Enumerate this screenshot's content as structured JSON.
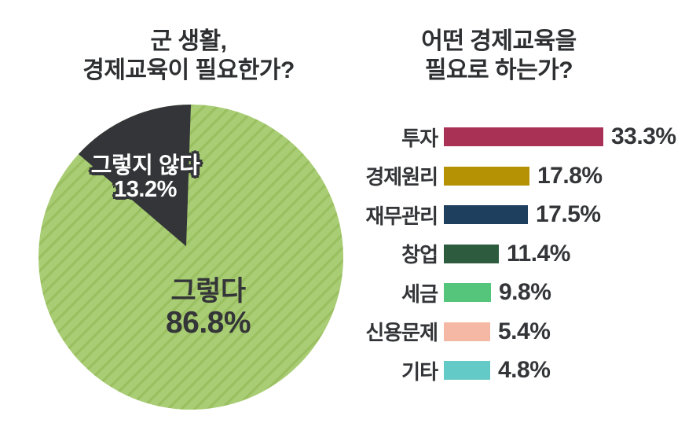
{
  "background_color": "#ffffff",
  "text_color": "#333538",
  "pie_section": {
    "title_line1": "군 생활,",
    "title_line2": "경제교육이 필요한가?",
    "label_no_line1": "그렇지 않다",
    "label_no_line2": "13.2%",
    "label_yes_line1": "그렇다",
    "label_yes_line2": "86.8%"
  },
  "bar_section": {
    "title_line1": "어떤 경제교육을",
    "title_line2": "필요로 하는가?"
  },
  "chart_data": [
    {
      "type": "pie",
      "title": "군 생활, 경제교육이 필요한가?",
      "slices": [
        {
          "label": "그렇다",
          "value": 86.8,
          "display": "86.8%",
          "color": "#a9cd74",
          "pattern": "diagonal-stripes",
          "stripe_color": "#9abf60",
          "label_style": "dark-text-inside"
        },
        {
          "label": "그렇지 않다",
          "value": 13.2,
          "display": "13.2%",
          "color": "#333538",
          "label_style": "white-outlined-text"
        }
      ],
      "start_angle_deg": 0,
      "note": "dark slice sits counterclockwise from 12 o'clock, slightly exploded"
    },
    {
      "type": "bar",
      "orientation": "horizontal",
      "title": "어떤 경제교육을 필요로 하는가?",
      "categories": [
        "투자",
        "경제원리",
        "재무관리",
        "창업",
        "세금",
        "신용문제",
        "기타"
      ],
      "values": [
        33.3,
        17.8,
        17.5,
        11.4,
        9.8,
        5.4,
        4.8
      ],
      "value_labels": [
        "33.3%",
        "17.8%",
        "17.5%",
        "11.4%",
        "9.8%",
        "5.4%",
        "4.8%"
      ],
      "colors": [
        "#a93156",
        "#b59104",
        "#1f3f5f",
        "#2d5b3d",
        "#55c57c",
        "#f5b8a4",
        "#63cac7"
      ],
      "xlim": [
        0,
        35
      ],
      "grid": false,
      "value_label_position": "right-of-bar",
      "category_label_position": "left-of-bar"
    }
  ]
}
